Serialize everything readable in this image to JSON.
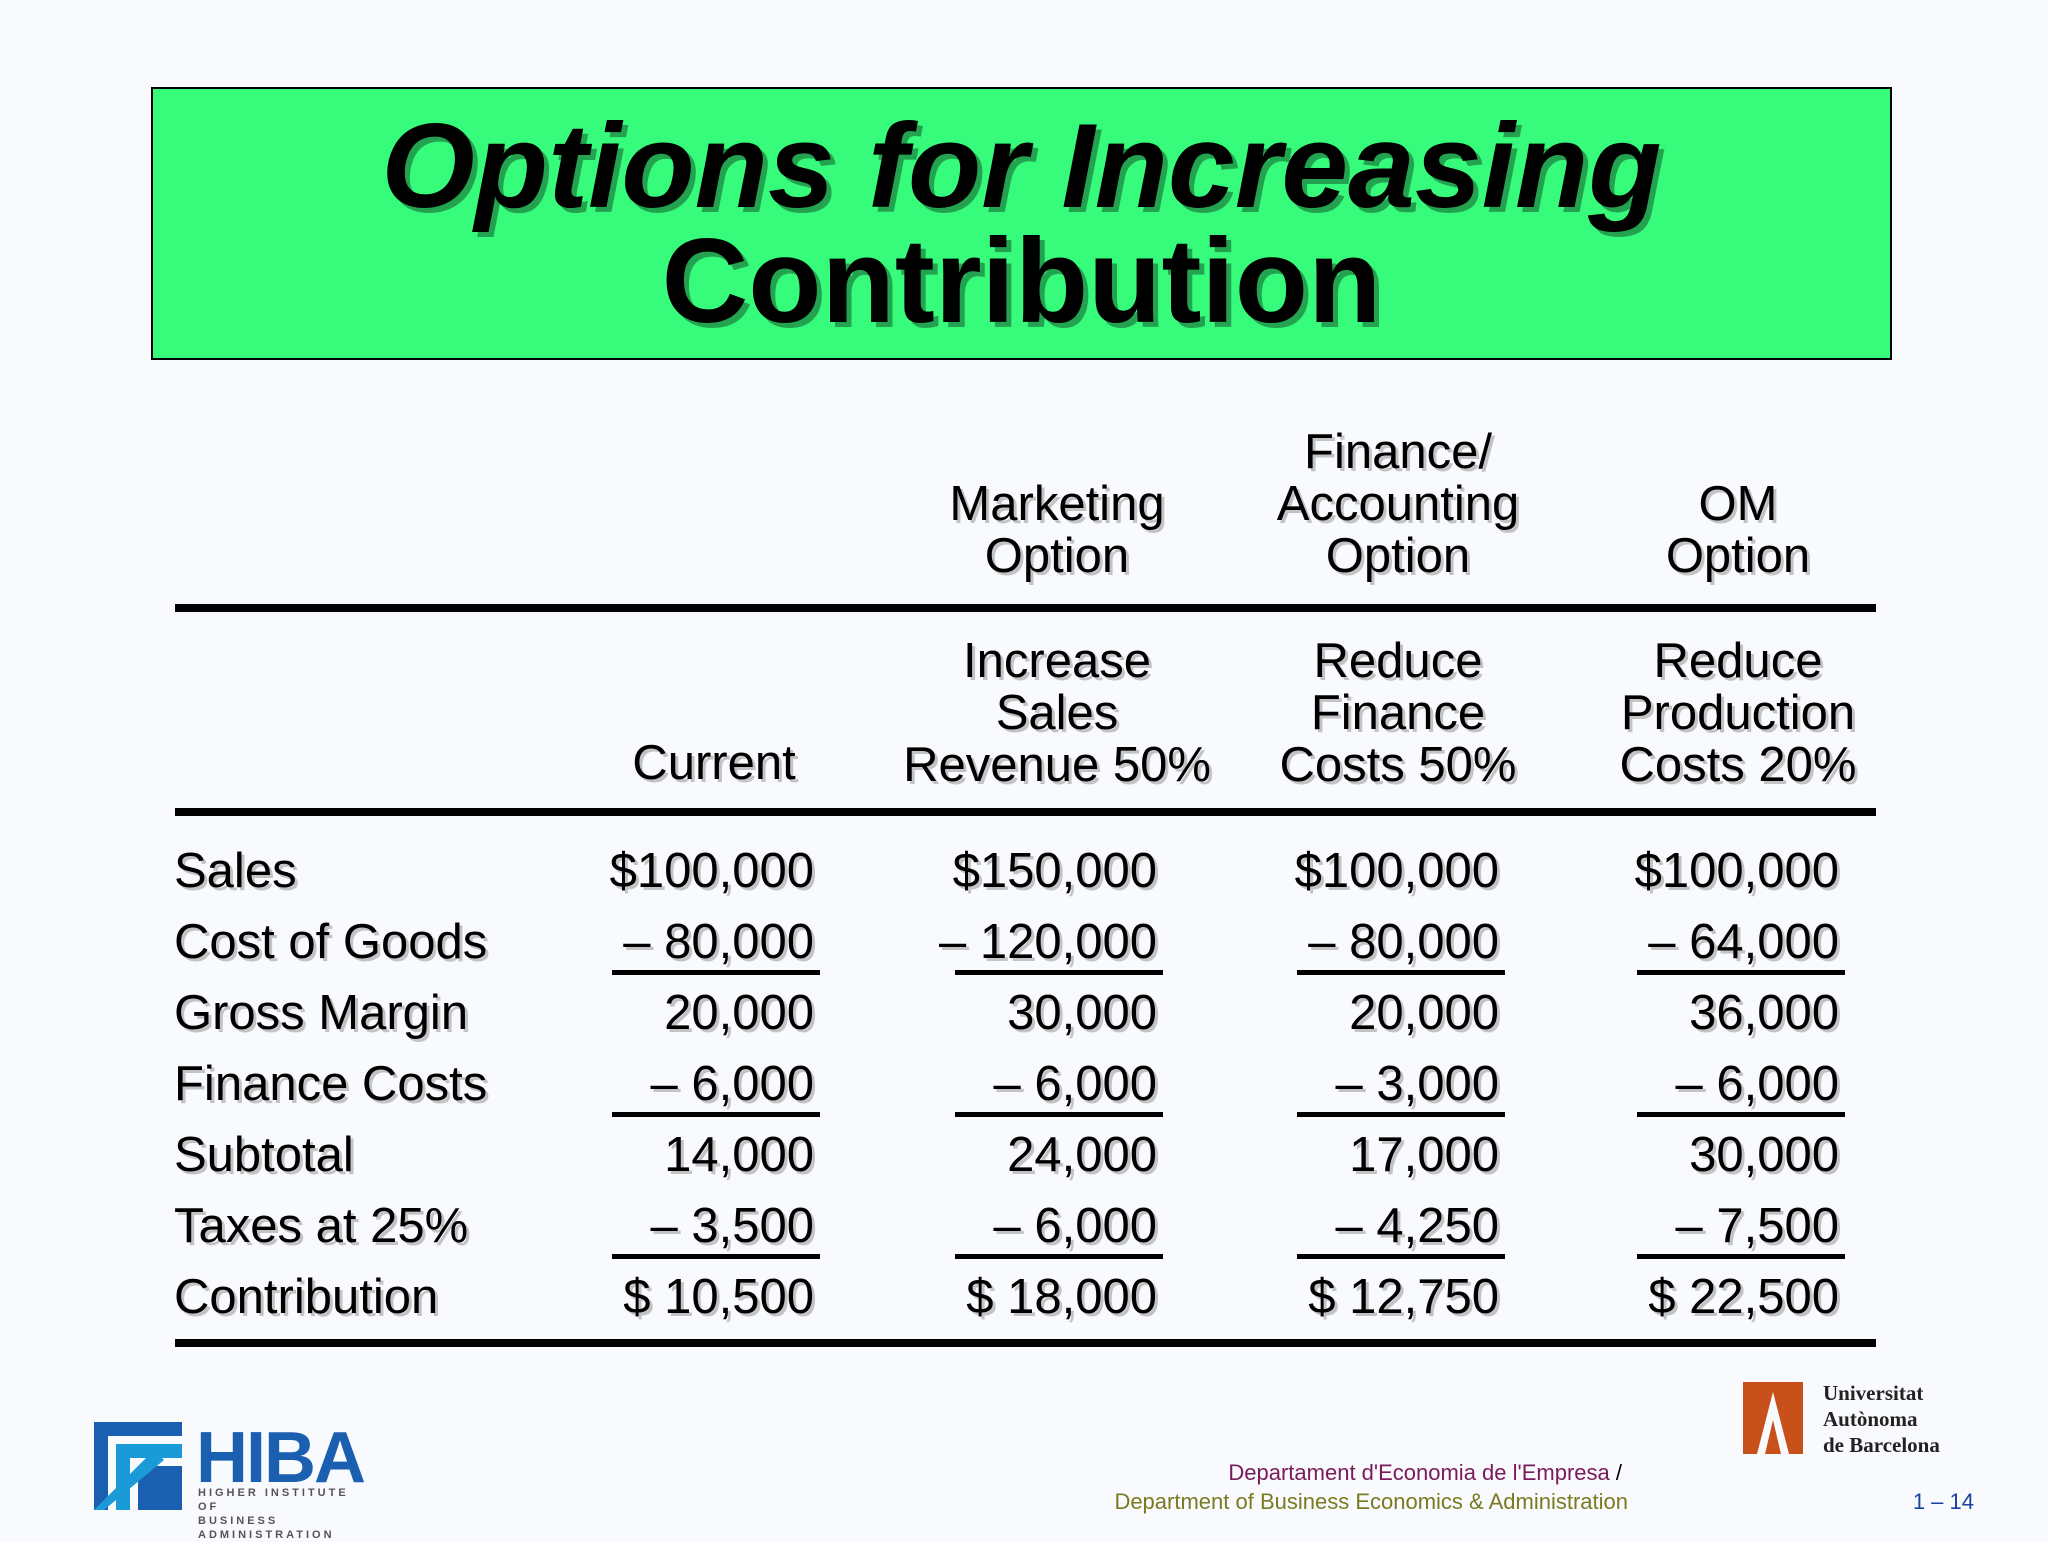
{
  "title": {
    "line1": "Options for Increasing",
    "line2": "Contribution"
  },
  "headers": {
    "marketing": [
      "Marketing",
      "Option"
    ],
    "finance": [
      "Finance/",
      "Accounting",
      "Option"
    ],
    "om": [
      "OM",
      "Option"
    ]
  },
  "subheaders": {
    "current": "Current",
    "marketing": [
      "Increase",
      "Sales",
      "Revenue 50%"
    ],
    "finance": [
      "Reduce",
      "Finance",
      "Costs 50%"
    ],
    "om": [
      "Reduce",
      "Production",
      "Costs 20%"
    ]
  },
  "rows": [
    {
      "label": "Sales",
      "values": [
        "$100,000",
        "$150,000",
        "$100,000",
        "$100,000"
      ]
    },
    {
      "label": "Cost of Goods",
      "values": [
        "– 80,000",
        "– 120,000",
        "– 80,000",
        "– 64,000"
      ]
    },
    {
      "label": "Gross Margin",
      "values": [
        "20,000",
        "30,000",
        "20,000",
        "36,000"
      ]
    },
    {
      "label": "Finance Costs",
      "values": [
        "– 6,000",
        "– 6,000",
        "– 3,000",
        "– 6,000"
      ]
    },
    {
      "label": "Subtotal",
      "values": [
        "14,000",
        "24,000",
        "17,000",
        "30,000"
      ]
    },
    {
      "label": "Taxes at 25%",
      "values": [
        "– 3,500",
        "– 6,000",
        "– 4,250",
        "– 7,500"
      ]
    },
    {
      "label": "Contribution",
      "values": [
        "$ 10,500",
        "$ 18,000",
        "$ 12,750",
        "$ 22,500"
      ]
    }
  ],
  "logos": {
    "hiba": {
      "mark": "HIBA",
      "subtitle": [
        "HIGHER INSTITUTE OF",
        "BUSINESS ADMINISTRATION"
      ]
    },
    "uab": [
      "Universitat",
      "Autònoma",
      "de Barcelona"
    ]
  },
  "footer": {
    "dept_es": "Departament d'Economia de l'Empresa",
    "separator": "/",
    "dept_en": "Department of Business Economics & Administration",
    "page": "1 – 14"
  }
}
